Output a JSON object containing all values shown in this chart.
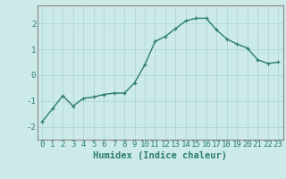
{
  "x": [
    0,
    1,
    2,
    3,
    4,
    5,
    6,
    7,
    8,
    9,
    10,
    11,
    12,
    13,
    14,
    15,
    16,
    17,
    18,
    19,
    20,
    21,
    22,
    23
  ],
  "y": [
    -1.8,
    -1.3,
    -0.8,
    -1.2,
    -0.9,
    -0.85,
    -0.75,
    -0.7,
    -0.7,
    -0.3,
    0.4,
    1.3,
    1.5,
    1.8,
    2.1,
    2.2,
    2.2,
    1.75,
    1.4,
    1.2,
    1.05,
    0.6,
    0.45,
    0.5
  ],
  "line_color": "#2d7d6e",
  "marker": "+",
  "bg_color": "#cceae8",
  "grid_color": "#b0d8d4",
  "xlabel": "Humidex (Indice chaleur)",
  "ylim": [
    -2.5,
    2.7
  ],
  "xlim": [
    -0.5,
    23.5
  ],
  "yticks": [
    -2,
    -1,
    0,
    1,
    2
  ],
  "xlabel_fontsize": 7.5,
  "tick_fontsize": 6.5,
  "linewidth": 1.0,
  "markersize": 3.5,
  "spine_color": "#888888",
  "tick_color": "#2d7d6e",
  "label_color": "#2d7d6e"
}
